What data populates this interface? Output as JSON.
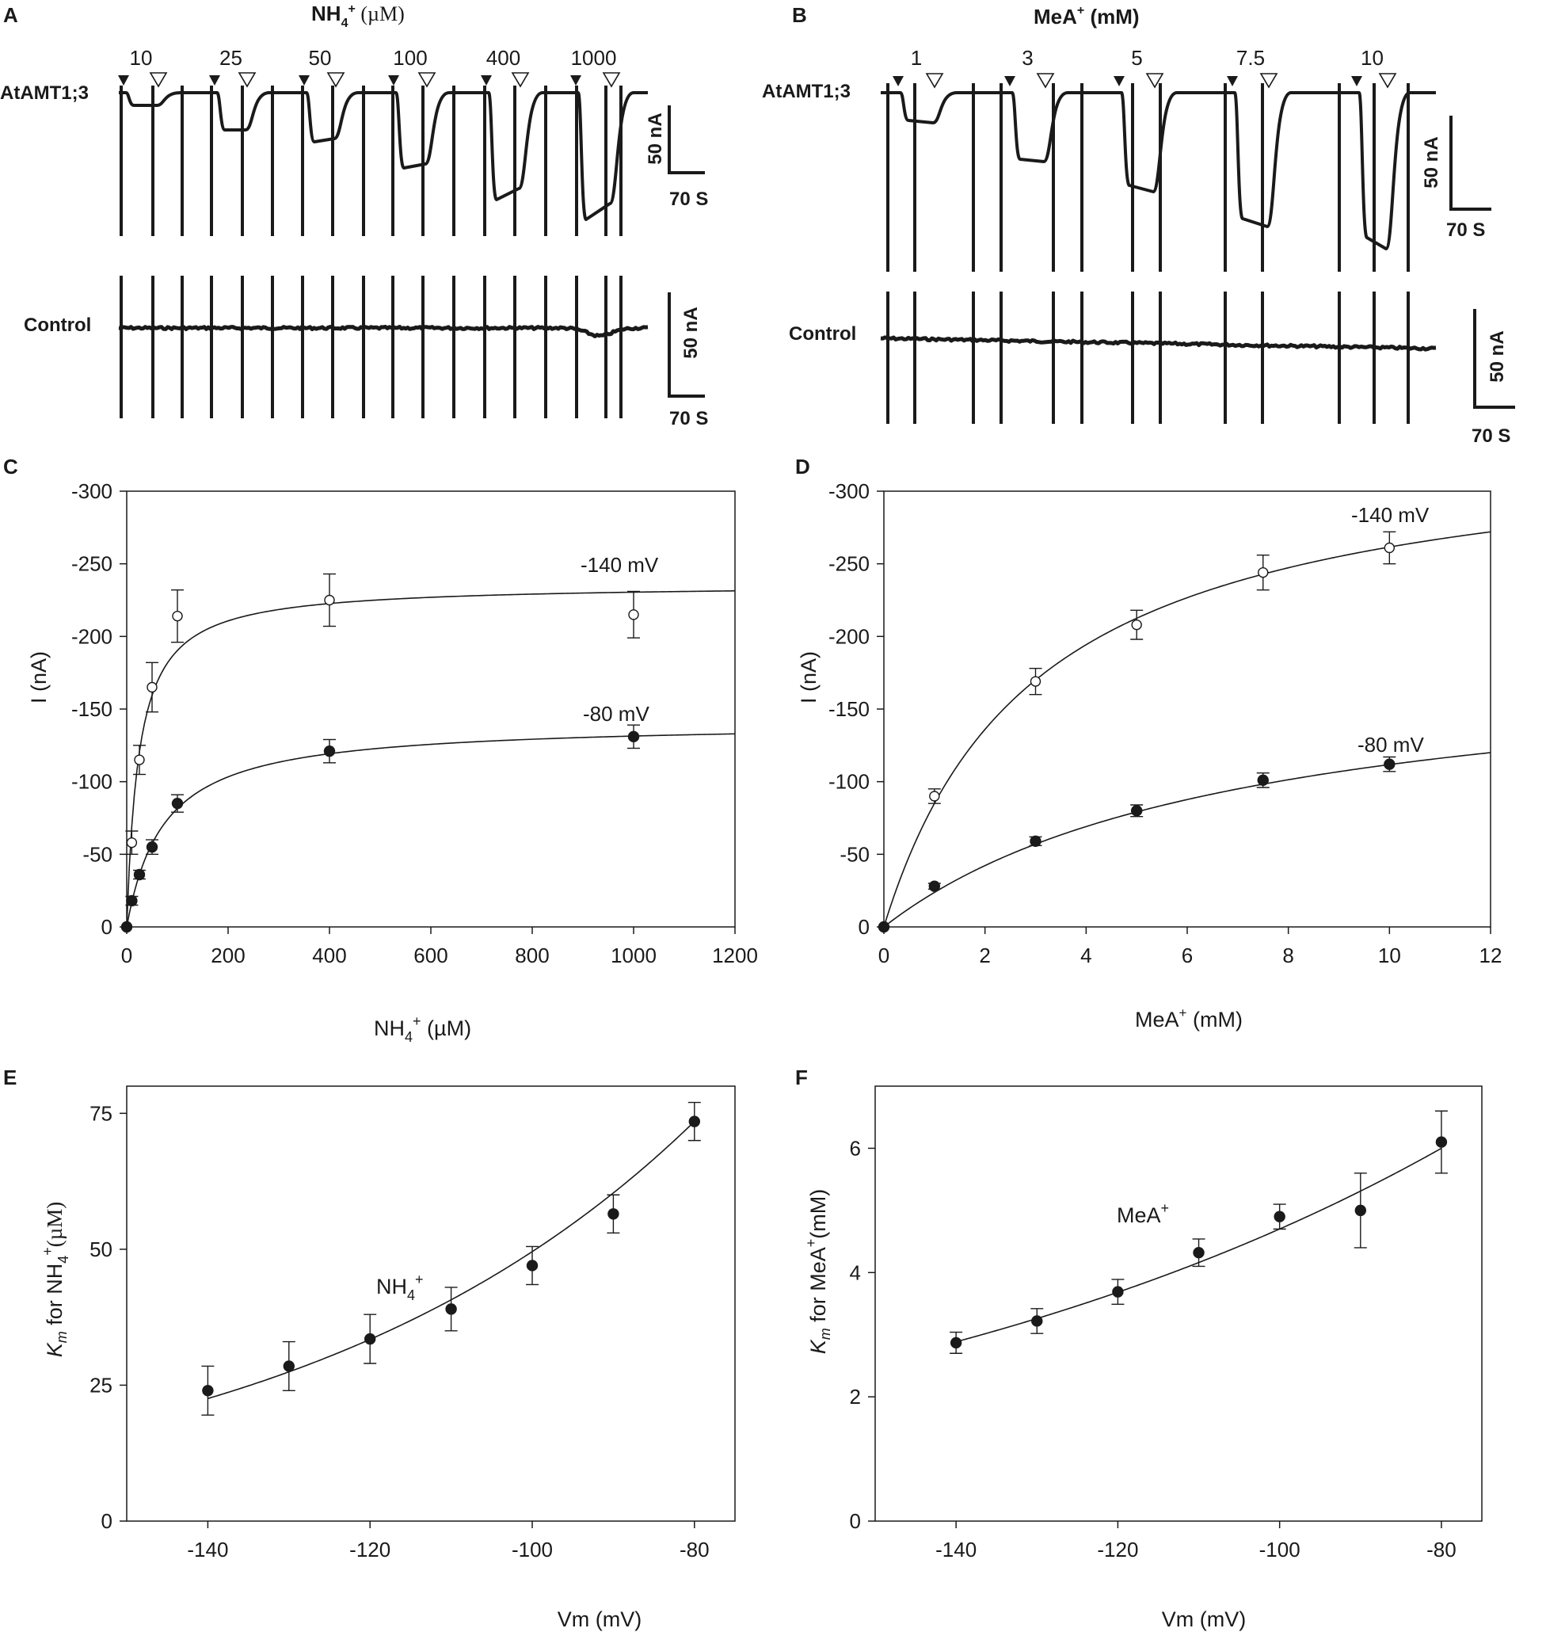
{
  "panels": {
    "A": {
      "letter": "A",
      "title_main": "NH",
      "title_sub": "4",
      "title_sup": "+",
      "title_unit": " (µM)",
      "trace_label": "AtAMT1;3",
      "control_label": "Control",
      "concentrations": [
        "10",
        "25",
        "50",
        "100",
        "400",
        "1000"
      ],
      "scale_current": "50 nA",
      "scale_time": "70 S",
      "control_scale_current": "50 nA",
      "control_scale_time": "70 S"
    },
    "B": {
      "letter": "B",
      "title_main": "MeA",
      "title_sup": "+",
      "title_unit": " (mM)",
      "trace_label": "AtAMT1;3",
      "control_label": "Control",
      "concentrations": [
        "1",
        "3",
        "5",
        "7.5",
        "10"
      ],
      "scale_current": "50 nA",
      "scale_time": "70 S",
      "control_scale_current": "50 nA",
      "control_scale_time": "70 S"
    },
    "C": {
      "letter": "C"
    },
    "D": {
      "letter": "D"
    },
    "E": {
      "letter": "E"
    },
    "F": {
      "letter": "F"
    }
  },
  "chart_data": [
    {
      "id": "C",
      "type": "scatter",
      "xlabel_main": "NH",
      "xlabel_sub": "4",
      "xlabel_sup": "+",
      "xlabel_unit": " (µM)",
      "ylabel": "I (nA)",
      "xlim": [
        0,
        1200
      ],
      "ylim": [
        0,
        -300
      ],
      "xticks": [
        0,
        200,
        400,
        600,
        800,
        1000,
        1200
      ],
      "yticks": [
        0,
        -50,
        -100,
        -150,
        -200,
        -250,
        -300
      ],
      "series": [
        {
          "name": "-140 mV",
          "marker": "open",
          "x": [
            0,
            10,
            25,
            50,
            100,
            400,
            1000
          ],
          "y": [
            0,
            -58,
            -115,
            -165,
            -214,
            -225,
            -215
          ],
          "err": [
            0,
            8,
            10,
            17,
            18,
            18,
            16
          ],
          "fit": {
            "vmax": -236,
            "km": 24
          }
        },
        {
          "name": "-80 mV",
          "marker": "filled",
          "x": [
            0,
            10,
            25,
            50,
            100,
            400,
            1000
          ],
          "y": [
            0,
            -18,
            -36,
            -55,
            -85,
            -121,
            -131
          ],
          "err": [
            0,
            3,
            3,
            5,
            6,
            8,
            8
          ],
          "fit": {
            "vmax": -141,
            "km": 73
          }
        }
      ]
    },
    {
      "id": "D",
      "type": "scatter",
      "xlabel_main": "MeA",
      "xlabel_sup": "+",
      "xlabel_unit": " (mM)",
      "ylabel": "I (nA)",
      "xlim": [
        0,
        12
      ],
      "ylim": [
        0,
        -300
      ],
      "xticks": [
        0,
        2,
        4,
        6,
        8,
        10,
        12
      ],
      "yticks": [
        0,
        -50,
        -100,
        -150,
        -200,
        -250,
        -300
      ],
      "series": [
        {
          "name": "-140 mV",
          "marker": "open",
          "x": [
            0,
            1,
            3,
            5,
            7.5,
            10
          ],
          "y": [
            0,
            -90,
            -169,
            -208,
            -244,
            -261
          ],
          "err": [
            0,
            5,
            9,
            10,
            12,
            11
          ],
          "fit": {
            "vmax": -340,
            "km": 3.0
          }
        },
        {
          "name": "-80 mV",
          "marker": "filled",
          "x": [
            0,
            1,
            3,
            5,
            7.5,
            10
          ],
          "y": [
            0,
            -28,
            -59,
            -80,
            -101,
            -112
          ],
          "err": [
            0,
            2,
            3,
            4,
            5,
            5
          ],
          "fit": {
            "vmax": -190,
            "km": 7.0
          }
        }
      ]
    },
    {
      "id": "E",
      "type": "scatter",
      "annotation_main": "NH",
      "annotation_sub": "4",
      "annotation_sup": "+",
      "xlabel": "Vm (mV)",
      "ylabel_italic": "K",
      "ylabel_italic_sub": "m",
      "ylabel_rest": " for NH",
      "ylabel_sub": "4",
      "ylabel_sup": "+",
      "ylabel_unit": "(µM)",
      "xlim": [
        -150,
        -75
      ],
      "ylim": [
        0,
        80
      ],
      "xticks": [
        -140,
        -120,
        -100,
        -80
      ],
      "yticks": [
        0,
        25,
        50,
        75
      ],
      "series": [
        {
          "name": "NH4+",
          "marker": "filled",
          "x": [
            -140,
            -130,
            -120,
            -110,
            -100,
            -90,
            -80
          ],
          "y": [
            24,
            28.5,
            33.5,
            39,
            47,
            56.5,
            73.5
          ],
          "err": [
            4.5,
            4.5,
            4.5,
            4,
            3.5,
            3.5,
            3.5
          ],
          "fit": {
            "a": 73.5,
            "b": 0.0197,
            "x0": -80
          }
        }
      ]
    },
    {
      "id": "F",
      "type": "scatter",
      "annotation_main": "MeA",
      "annotation_sup": "+",
      "xlabel": "Vm (mV)",
      "ylabel_italic": "K",
      "ylabel_italic_sub": "m",
      "ylabel_rest": " for MeA",
      "ylabel_sup": "+",
      "ylabel_unit": "(mM)",
      "xlim": [
        -150,
        -75
      ],
      "ylim": [
        0,
        7
      ],
      "xticks": [
        -140,
        -120,
        -100,
        -80
      ],
      "yticks": [
        0,
        2,
        4,
        6
      ],
      "series": [
        {
          "name": "MeA+",
          "marker": "filled",
          "x": [
            -140,
            -130,
            -120,
            -110,
            -100,
            -90,
            -80
          ],
          "y": [
            2.87,
            3.22,
            3.69,
            4.32,
            4.9,
            5.0,
            6.1
          ],
          "err": [
            0.17,
            0.2,
            0.2,
            0.22,
            0.2,
            0.6,
            0.5
          ],
          "fit": {
            "a": 6.0,
            "b": 0.0122,
            "x0": -80
          }
        }
      ]
    }
  ]
}
